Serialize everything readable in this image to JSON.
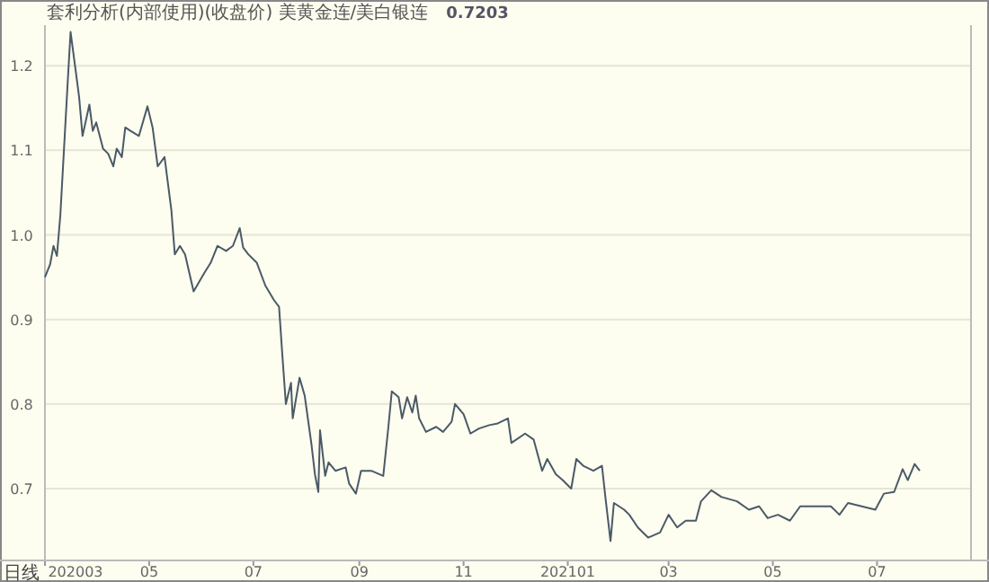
{
  "chart_data": {
    "type": "line",
    "title": "套利分析(内部使用)(收盘价) 美黄金连/美白银连",
    "annotations": [
      "0.7203",
      "日线"
    ],
    "x": [
      "2020-03-01",
      "2020-03-04",
      "2020-03-06",
      "2020-03-08",
      "2020-03-10",
      "2020-03-14",
      "2020-03-16",
      "2020-03-19",
      "2020-03-21",
      "2020-03-23",
      "2020-03-27",
      "2020-03-29",
      "2020-03-31",
      "2020-04-04",
      "2020-04-07",
      "2020-04-10",
      "2020-04-12",
      "2020-04-15",
      "2020-04-17",
      "2020-04-20",
      "2020-04-25",
      "2020-04-30",
      "2020-05-03",
      "2020-05-06",
      "2020-05-10",
      "2020-05-14",
      "2020-05-16",
      "2020-05-19",
      "2020-05-22",
      "2020-05-27",
      "2020-06-02",
      "2020-06-06",
      "2020-06-10",
      "2020-06-15",
      "2020-06-19",
      "2020-06-23",
      "2020-06-25",
      "2020-06-28",
      "2020-07-03",
      "2020-07-08",
      "2020-07-13",
      "2020-07-16",
      "2020-07-18",
      "2020-07-20",
      "2020-07-23",
      "2020-07-24",
      "2020-07-28",
      "2020-07-31",
      "2020-08-04",
      "2020-08-06",
      "2020-08-08",
      "2020-08-09",
      "2020-08-12",
      "2020-08-14",
      "2020-08-18",
      "2020-08-24",
      "2020-08-26",
      "2020-08-30",
      "2020-09-02",
      "2020-09-08",
      "2020-09-15",
      "2020-09-18",
      "2020-09-20",
      "2020-09-24",
      "2020-09-26",
      "2020-09-29",
      "2020-10-02",
      "2020-10-04",
      "2020-10-06",
      "2020-10-10",
      "2020-10-16",
      "2020-10-20",
      "2020-10-25",
      "2020-10-27",
      "2020-11-01",
      "2020-11-05",
      "2020-11-10",
      "2020-11-16",
      "2020-11-21",
      "2020-11-27",
      "2020-11-29",
      "2020-12-07",
      "2020-12-12",
      "2020-12-17",
      "2020-12-20",
      "2020-12-25",
      "2020-12-29",
      "2021-01-03",
      "2021-01-06",
      "2021-01-10",
      "2021-01-16",
      "2021-01-21",
      "2021-01-23",
      "2021-01-26",
      "2021-01-28",
      "2021-02-03",
      "2021-02-06",
      "2021-02-11",
      "2021-02-17",
      "2021-02-24",
      "2021-03-01",
      "2021-03-06",
      "2021-03-11",
      "2021-03-17",
      "2021-03-20",
      "2021-03-26",
      "2021-04-01",
      "2021-04-10",
      "2021-04-17",
      "2021-04-23",
      "2021-04-28",
      "2021-05-04",
      "2021-05-11",
      "2021-05-17",
      "2021-05-24",
      "2021-06-04",
      "2021-06-09",
      "2021-06-14",
      "2021-06-22",
      "2021-06-30",
      "2021-07-05",
      "2021-07-11",
      "2021-07-16",
      "2021-07-19",
      "2021-07-23",
      "2021-07-26"
    ],
    "series": [
      {
        "color": "#4a5a66",
        "values": [
          0.95,
          0.965,
          0.987,
          0.975,
          1.023,
          1.169,
          1.24,
          1.194,
          1.163,
          1.117,
          1.154,
          1.123,
          1.133,
          1.102,
          1.096,
          1.081,
          1.102,
          1.092,
          1.127,
          1.123,
          1.117,
          1.152,
          1.127,
          1.081,
          1.092,
          1.029,
          0.977,
          0.987,
          0.977,
          0.933,
          0.954,
          0.967,
          0.987,
          0.981,
          0.987,
          1.008,
          0.985,
          0.977,
          0.967,
          0.94,
          0.923,
          0.915,
          0.856,
          0.8,
          0.825,
          0.783,
          0.831,
          0.81,
          0.752,
          0.717,
          0.696,
          0.769,
          0.715,
          0.731,
          0.721,
          0.725,
          0.706,
          0.694,
          0.721,
          0.721,
          0.715,
          0.773,
          0.815,
          0.808,
          0.783,
          0.808,
          0.79,
          0.81,
          0.783,
          0.767,
          0.773,
          0.767,
          0.779,
          0.8,
          0.788,
          0.765,
          0.771,
          0.775,
          0.777,
          0.783,
          0.754,
          0.765,
          0.758,
          0.721,
          0.735,
          0.717,
          0.71,
          0.7,
          0.735,
          0.727,
          0.721,
          0.727,
          0.69,
          0.638,
          0.683,
          0.675,
          0.669,
          0.654,
          0.642,
          0.648,
          0.669,
          0.654,
          0.662,
          0.662,
          0.685,
          0.698,
          0.69,
          0.685,
          0.675,
          0.679,
          0.665,
          0.669,
          0.662,
          0.679,
          0.679,
          0.679,
          0.669,
          0.683,
          0.679,
          0.675,
          0.694,
          0.696,
          0.723,
          0.71,
          0.729,
          0.721
        ]
      }
    ],
    "xlim": [
      "2020-03-01",
      "2021-08-25"
    ],
    "xticks": [
      {
        "value": "2020-03-01",
        "label": "202003"
      },
      {
        "value": "2020-05-01",
        "label": "05"
      },
      {
        "value": "2020-07-01",
        "label": "07"
      },
      {
        "value": "2020-09-01",
        "label": "09"
      },
      {
        "value": "2020-11-01",
        "label": "11"
      },
      {
        "value": "2021-01-01",
        "label": "202101"
      },
      {
        "value": "2021-03-01",
        "label": "03"
      },
      {
        "value": "2021-05-01",
        "label": "05"
      },
      {
        "value": "2021-07-01",
        "label": "07"
      }
    ],
    "ylim": [
      0.615,
      1.248
    ],
    "yticks": [
      0.7,
      0.8,
      0.9,
      {
        "value": 1,
        "label": "1.0"
      },
      1.1,
      1.2
    ],
    "grid": "y"
  }
}
